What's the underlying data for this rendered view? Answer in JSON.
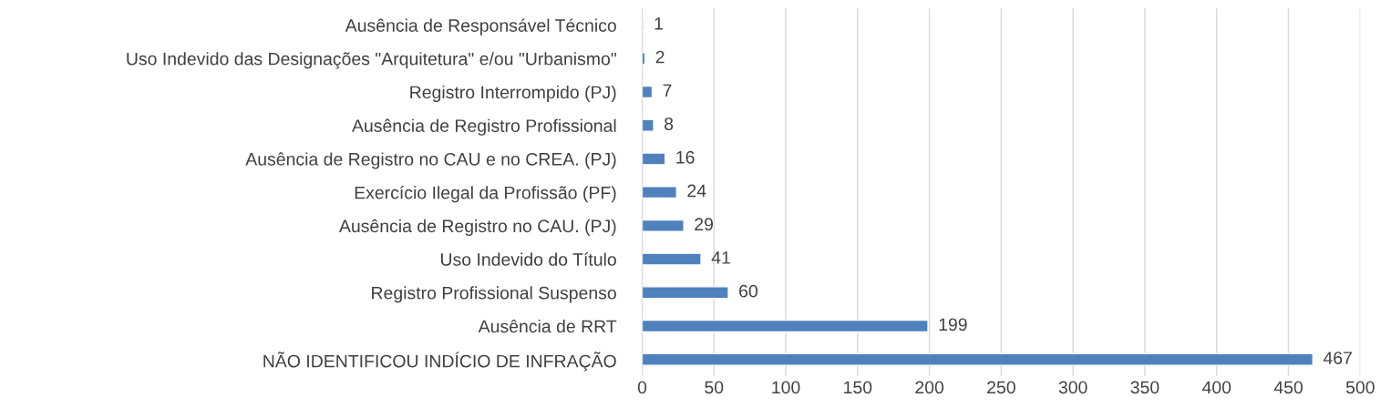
{
  "chart_data": {
    "type": "bar",
    "orientation": "horizontal",
    "categories": [
      "Ausência de Responsável Técnico",
      "Uso Indevido das Designações \"Arquitetura\" e/ou \"Urbanismo\"",
      "Registro Interrompido (PJ)",
      "Ausência de Registro Profissional",
      "Ausência de Registro no CAU e no CREA. (PJ)",
      "Exercício Ilegal da Profissão (PF)",
      "Ausência de Registro no CAU. (PJ)",
      "Uso Indevido do Título",
      "Registro Profissional Suspenso",
      "Ausência de RRT",
      "NÃO IDENTIFICOU INDÍCIO DE INFRAÇÃO"
    ],
    "values": [
      1,
      2,
      7,
      8,
      16,
      24,
      29,
      41,
      60,
      199,
      467
    ],
    "color": "#4f81bd",
    "xlim": [
      0,
      500
    ],
    "xticks": [
      0,
      50,
      100,
      150,
      200,
      250,
      300,
      350,
      400,
      450,
      500
    ],
    "grid": "x",
    "data_labels": true,
    "legend": false
  }
}
